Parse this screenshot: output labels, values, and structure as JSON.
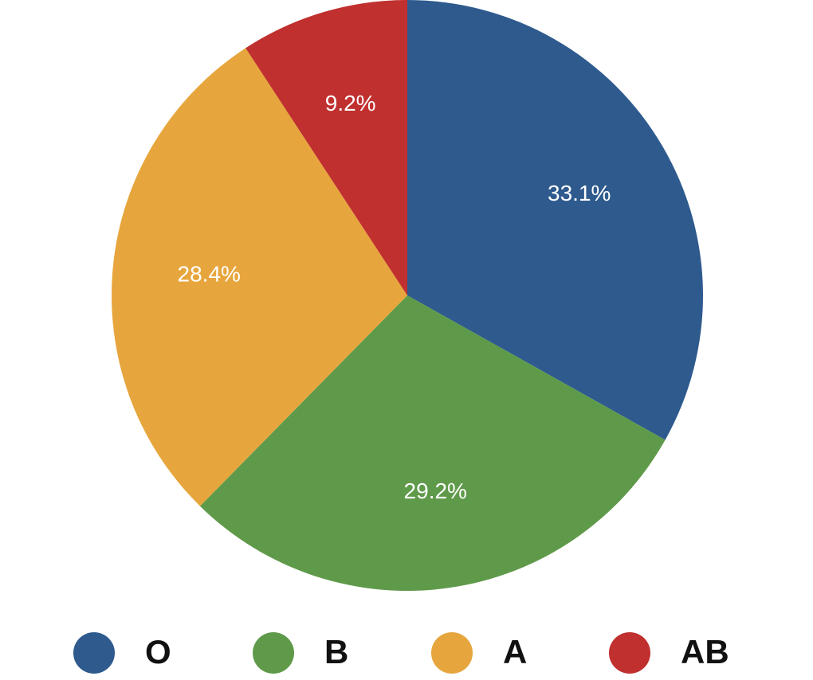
{
  "chart_data": {
    "type": "pie",
    "categories": [
      "O",
      "B",
      "A",
      "AB"
    ],
    "values": [
      33.1,
      29.2,
      28.4,
      9.2
    ],
    "value_labels": [
      "33.1%",
      "29.2%",
      "28.4%",
      "9.2%"
    ],
    "colors": [
      "#2e5a8e",
      "#5f9a4a",
      "#e7a63d",
      "#c0302f"
    ],
    "legend": "bottom"
  }
}
